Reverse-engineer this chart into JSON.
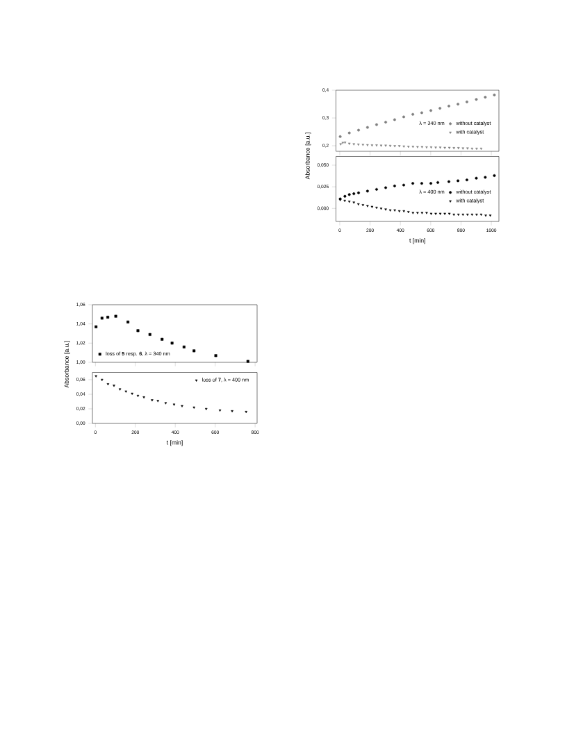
{
  "chart_data": [
    {
      "type": "scatter",
      "xlim": [
        -25,
        1050
      ],
      "xticks": [
        0,
        200,
        400,
        600,
        800,
        1000
      ],
      "ylim": [
        0.18,
        0.4
      ],
      "yticks": [
        {
          "value": 0.2,
          "label": "0,2"
        },
        {
          "value": 0.3,
          "label": "0,3"
        },
        {
          "value": 0.4,
          "label": "0,4"
        }
      ],
      "tick_labels": "y",
      "legend": "right",
      "legend_title": "λ = 340 nm",
      "series": [
        {
          "name": "without catalyst",
          "color": "#808080",
          "marker": "circle",
          "x": [
            3,
            63,
            124,
            183,
            243,
            303,
            362,
            422,
            482,
            541,
            601,
            661,
            720,
            780,
            839,
            901,
            960,
            1020
          ],
          "values": [
            0.233,
            0.246,
            0.256,
            0.266,
            0.276,
            0.285,
            0.294,
            0.304,
            0.313,
            0.319,
            0.327,
            0.335,
            0.343,
            0.35,
            0.358,
            0.367,
            0.375,
            0.383
          ]
        },
        {
          "name": "with catalyst",
          "color": "#808080",
          "marker": "triangle",
          "x": [
            6,
            20,
            35,
            63,
            93,
            123,
            153,
            183,
            213,
            243,
            273,
            303,
            333,
            363,
            393,
            423,
            453,
            483,
            513,
            543,
            573,
            603,
            633,
            663,
            693,
            723,
            753,
            783,
            813,
            843,
            873,
            903,
            933
          ],
          "values": [
            0.206,
            0.211,
            0.212,
            0.208,
            0.206,
            0.205,
            0.204,
            0.203,
            0.202,
            0.202,
            0.201,
            0.201,
            0.2,
            0.199,
            0.199,
            0.198,
            0.197,
            0.197,
            0.196,
            0.196,
            0.195,
            0.195,
            0.194,
            0.194,
            0.193,
            0.193,
            0.192,
            0.192,
            0.191,
            0.191,
            0.19,
            0.19,
            0.19
          ]
        }
      ]
    },
    {
      "type": "scatter",
      "xlim": [
        -25,
        1050
      ],
      "xticks": [
        0,
        200,
        400,
        600,
        800,
        1000
      ],
      "ylim": [
        -0.015,
        0.06
      ],
      "yticks": [
        {
          "value": 0,
          "label": "0,000"
        },
        {
          "value": 0.025,
          "label": "0,025"
        },
        {
          "value": 0.05,
          "label": "0,050"
        }
      ],
      "xlabel": "t [min]",
      "ylabel": "Absorbance [a.u.]",
      "legend": "right",
      "legend_title": "λ = 400 nm",
      "series": [
        {
          "name": "without catalyst",
          "color": "#000000",
          "marker": "circle",
          "x": [
            3,
            34,
            63,
            93,
            124,
            183,
            243,
            303,
            362,
            422,
            482,
            541,
            601,
            647,
            720,
            780,
            839,
            901,
            960,
            1020
          ],
          "values": [
            0.011,
            0.014,
            0.016,
            0.017,
            0.018,
            0.02,
            0.022,
            0.024,
            0.026,
            0.027,
            0.029,
            0.029,
            0.029,
            0.03,
            0.031,
            0.032,
            0.033,
            0.035,
            0.036,
            0.038
          ]
        },
        {
          "name": "with catalyst",
          "color": "#000000",
          "marker": "triangle",
          "x": [
            3,
            33,
            63,
            93,
            123,
            153,
            183,
            213,
            243,
            273,
            303,
            333,
            363,
            393,
            423,
            453,
            483,
            513,
            543,
            573,
            603,
            633,
            663,
            693,
            723,
            753,
            783,
            813,
            843,
            873,
            903,
            933,
            963,
            993
          ],
          "values": [
            0.01,
            0.009,
            0.008,
            0.007,
            0.005,
            0.004,
            0.003,
            0.002,
            0.001,
            0.0,
            -0.001,
            -0.002,
            -0.002,
            -0.003,
            -0.003,
            -0.004,
            -0.005,
            -0.005,
            -0.005,
            -0.005,
            -0.006,
            -0.006,
            -0.006,
            -0.006,
            -0.006,
            -0.007,
            -0.007,
            -0.007,
            -0.007,
            -0.007,
            -0.007,
            -0.007,
            -0.008,
            -0.008
          ]
        }
      ]
    },
    {
      "type": "scatter",
      "xlim": [
        -15,
        810
      ],
      "xticks": [
        0,
        200,
        400,
        600,
        800
      ],
      "ylim": [
        1.0,
        1.06
      ],
      "yticks": [
        {
          "value": 1.0,
          "label": "1,00"
        },
        {
          "value": 1.02,
          "label": "1,02"
        },
        {
          "value": 1.04,
          "label": "1,04"
        },
        {
          "value": 1.06,
          "label": "1,06"
        }
      ],
      "tick_labels": "y",
      "legend": "bottom left",
      "series": [
        {
          "name": "loss of **5** resp. **6**, λ = 340 nm",
          "color": "#000000",
          "marker": "square",
          "x": [
            3,
            33,
            62,
            102,
            163,
            213,
            273,
            334,
            384,
            444,
            494,
            603,
            764
          ],
          "values": [
            1.037,
            1.046,
            1.047,
            1.048,
            1.042,
            1.033,
            1.029,
            1.024,
            1.02,
            1.016,
            1.012,
            1.007,
            1.001
          ]
        }
      ]
    },
    {
      "type": "scatter",
      "xlim": [
        -15,
        810
      ],
      "xticks": [
        0,
        200,
        400,
        600,
        800
      ],
      "ylim": [
        0,
        0.07
      ],
      "yticks": [
        {
          "value": 0,
          "label": "0,00"
        },
        {
          "value": 0.02,
          "label": "0,02"
        },
        {
          "value": 0.04,
          "label": "0,04"
        },
        {
          "value": 0.06,
          "label": "0,06"
        }
      ],
      "xlabel": "t [min]",
      "ylabel": "Absorbance [a.u.]",
      "legend": "top right",
      "series": [
        {
          "name": "loss of **7**, λ = 400 nm",
          "color": "#000000",
          "marker": "triangle",
          "x": [
            3,
            33,
            63,
            93,
            123,
            153,
            184,
            213,
            243,
            284,
            313,
            352,
            394,
            434,
            494,
            555,
            624,
            685,
            755
          ],
          "values": [
            0.065,
            0.06,
            0.054,
            0.052,
            0.047,
            0.044,
            0.041,
            0.038,
            0.036,
            0.032,
            0.031,
            0.028,
            0.026,
            0.024,
            0.022,
            0.02,
            0.018,
            0.017,
            0.016
          ]
        }
      ]
    }
  ]
}
